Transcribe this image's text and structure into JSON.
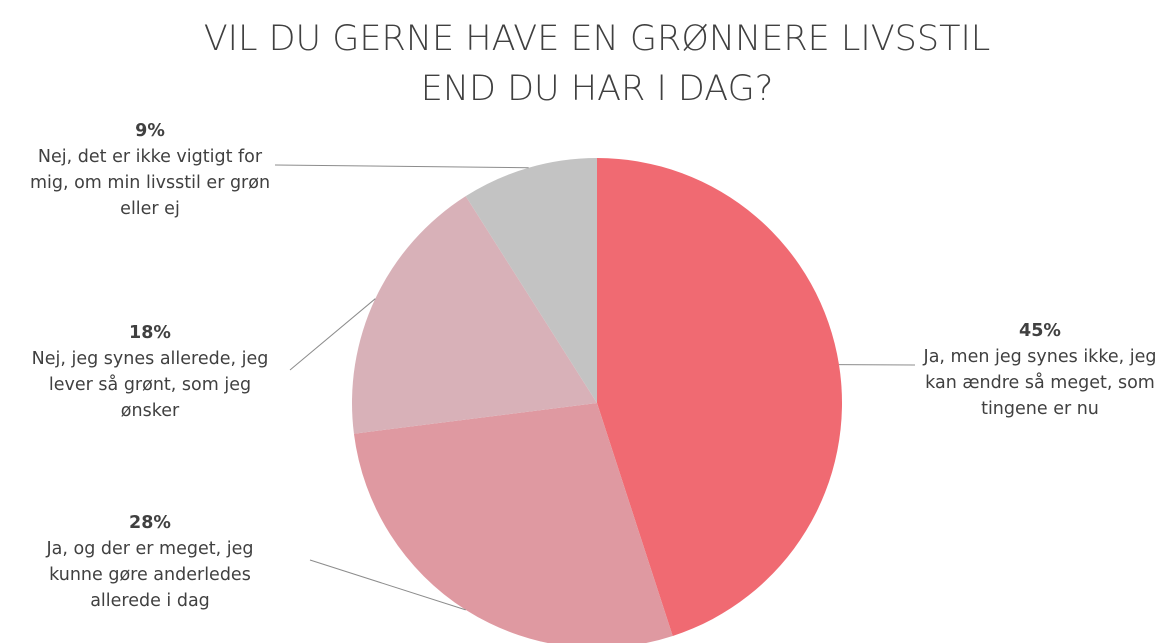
{
  "chart_data": {
    "type": "pie",
    "title": [
      "VIL DU GERNE HAVE EN GRØNNERE LIVSSTIL",
      "END DU HAR I DAG?"
    ],
    "categories": [
      "Ja, men jeg synes ikke, jeg kan ændre så meget, som tingene er nu",
      "Ja, og der er meget, jeg kunne gøre anderledes allerede i dag",
      "Nej, jeg synes allerede, jeg lever så grønt, som jeg ønsker",
      "Nej, det er ikke vigtigt for mig, om min livsstil er grøn eller ej"
    ],
    "values": [
      45,
      28,
      18,
      9
    ],
    "value_labels": [
      "45%",
      "28%",
      "18%",
      "9%"
    ],
    "colors": [
      "#f06a72",
      "#df99a1",
      "#d8b1b8",
      "#c3c3c3"
    ]
  }
}
